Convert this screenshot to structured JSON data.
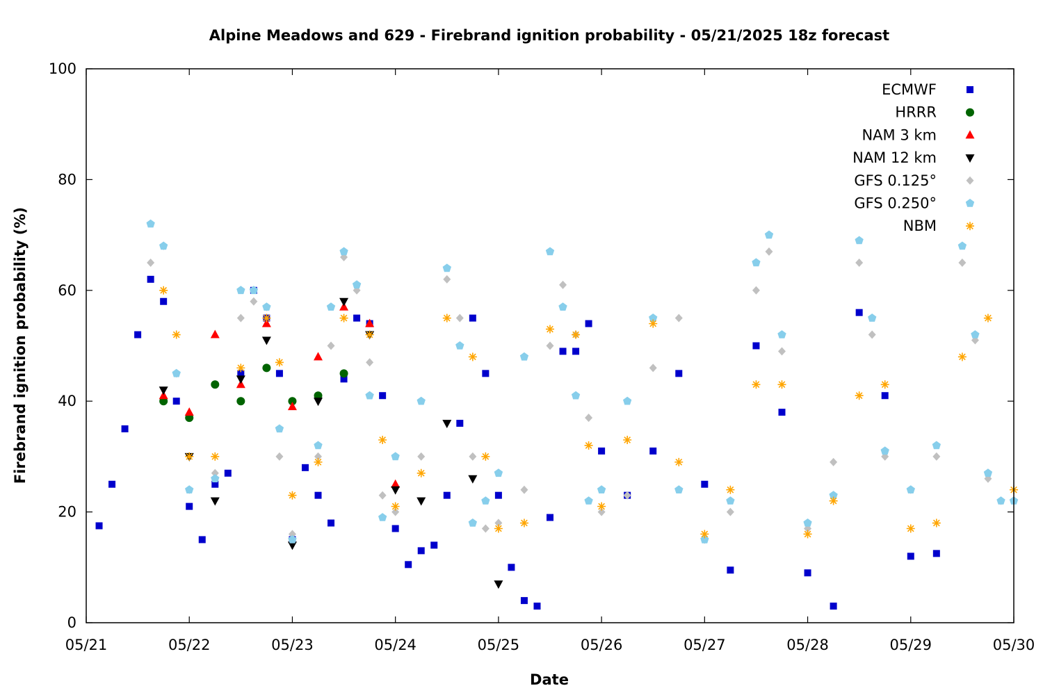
{
  "chart_data": {
    "type": "scatter",
    "title": "Alpine Meadows and 629 - Firebrand ignition probability - 05/21/2025 18z forecast",
    "xlabel": "Date",
    "ylabel": "Firebrand ignition probability (%)",
    "x_ticks": [
      "05/21",
      "05/22",
      "05/23",
      "05/24",
      "05/25",
      "05/26",
      "05/27",
      "05/28",
      "05/29",
      "05/30"
    ],
    "xlim": [
      "05/21 00:00",
      "05/30 00:00"
    ],
    "ylim": [
      0,
      100
    ],
    "y_ticks": [
      "0",
      "20",
      "40",
      "60",
      "80",
      "100"
    ],
    "grid": false,
    "legend_position": "top-right",
    "series": [
      {
        "name": "ECMWF",
        "marker": "square",
        "color": "#0000cc",
        "x": [
          "05/21 03:00",
          "05/21 06:00",
          "05/21 09:00",
          "05/21 12:00",
          "05/21 15:00",
          "05/21 18:00",
          "05/21 21:00",
          "05/22 00:00",
          "05/22 03:00",
          "05/22 06:00",
          "05/22 09:00",
          "05/22 12:00",
          "05/22 15:00",
          "05/22 18:00",
          "05/22 21:00",
          "05/23 00:00",
          "05/23 03:00",
          "05/23 06:00",
          "05/23 09:00",
          "05/23 12:00",
          "05/23 15:00",
          "05/23 18:00",
          "05/23 21:00",
          "05/24 00:00",
          "05/24 03:00",
          "05/24 06:00",
          "05/24 09:00",
          "05/24 12:00",
          "05/24 15:00",
          "05/24 18:00",
          "05/24 21:00",
          "05/25 00:00",
          "05/25 03:00",
          "05/25 06:00",
          "05/25 09:00",
          "05/25 12:00",
          "05/25 15:00",
          "05/25 18:00",
          "05/25 21:00",
          "05/26 00:00",
          "05/26 06:00",
          "05/26 12:00",
          "05/26 18:00",
          "05/27 00:00",
          "05/27 06:00",
          "05/27 12:00",
          "05/27 18:00",
          "05/28 00:00",
          "05/28 06:00",
          "05/28 12:00",
          "05/28 18:00",
          "05/29 00:00",
          "05/29 06:00"
        ],
        "y": [
          17.5,
          25,
          35,
          52,
          62,
          58,
          40,
          21,
          15,
          25,
          27,
          45,
          60,
          55,
          45,
          15,
          28,
          23,
          18,
          44,
          55,
          54,
          41,
          17,
          10.5,
          13,
          14,
          23,
          36,
          55,
          45,
          23,
          10,
          4,
          3,
          19,
          49,
          49,
          54,
          31,
          23,
          31,
          45,
          25,
          9.5,
          50,
          38,
          9,
          3,
          56,
          41,
          12,
          12.5
        ]
      },
      {
        "name": "HRRR",
        "marker": "circle",
        "color": "#006400",
        "x": [
          "05/21 18:00",
          "05/22 00:00",
          "05/22 06:00",
          "05/22 12:00",
          "05/22 18:00",
          "05/23 00:00",
          "05/23 06:00",
          "05/23 12:00"
        ],
        "y": [
          40,
          37,
          43,
          40,
          46,
          40,
          41,
          45
        ]
      },
      {
        "name": "NAM 3 km",
        "marker": "triangle-up",
        "color": "#ff0000",
        "x": [
          "05/21 18:00",
          "05/22 00:00",
          "05/22 06:00",
          "05/22 12:00",
          "05/22 18:00",
          "05/23 00:00",
          "05/23 06:00",
          "05/23 12:00",
          "05/23 18:00",
          "05/24 00:00"
        ],
        "y": [
          41,
          38,
          52,
          43,
          54,
          39,
          48,
          57,
          54,
          25
        ]
      },
      {
        "name": "NAM 12 km",
        "marker": "triangle-down",
        "color": "#000000",
        "x": [
          "05/21 18:00",
          "05/22 00:00",
          "05/22 06:00",
          "05/22 12:00",
          "05/22 18:00",
          "05/23 00:00",
          "05/23 06:00",
          "05/23 12:00",
          "05/23 18:00",
          "05/24 00:00",
          "05/24 06:00",
          "05/24 12:00",
          "05/24 18:00",
          "05/25 00:00"
        ],
        "y": [
          42,
          30,
          22,
          44,
          51,
          14,
          40,
          58,
          52,
          24,
          22,
          36,
          26,
          7
        ]
      },
      {
        "name": "GFS 0.125°",
        "marker": "diamond",
        "color": "#c0c0c0",
        "x": [
          "05/21 15:00",
          "05/21 18:00",
          "05/21 21:00",
          "05/22 00:00",
          "05/22 06:00",
          "05/22 12:00",
          "05/22 15:00",
          "05/22 18:00",
          "05/22 21:00",
          "05/23 00:00",
          "05/23 06:00",
          "05/23 09:00",
          "05/23 12:00",
          "05/23 15:00",
          "05/23 18:00",
          "05/23 21:00",
          "05/24 00:00",
          "05/24 06:00",
          "05/24 12:00",
          "05/24 15:00",
          "05/24 18:00",
          "05/24 21:00",
          "05/25 00:00",
          "05/25 06:00",
          "05/25 12:00",
          "05/25 15:00",
          "05/25 18:00",
          "05/25 21:00",
          "05/26 00:00",
          "05/26 06:00",
          "05/26 12:00",
          "05/26 18:00",
          "05/27 00:00",
          "05/27 06:00",
          "05/27 12:00",
          "05/27 15:00",
          "05/27 18:00",
          "05/28 00:00",
          "05/28 06:00",
          "05/28 12:00",
          "05/28 15:00",
          "05/28 18:00",
          "05/29 00:00",
          "05/29 06:00",
          "05/29 12:00",
          "05/29 15:00",
          "05/29 18:00",
          "05/29 21:00",
          "05/30 00:00"
        ],
        "y": [
          65,
          68,
          45,
          24,
          27,
          55,
          58,
          57,
          30,
          16,
          30,
          50,
          66,
          60,
          47,
          23,
          20,
          30,
          62,
          55,
          30,
          17,
          18,
          24,
          50,
          61,
          52,
          37,
          20,
          23,
          46,
          55,
          15,
          20,
          60,
          67,
          49,
          17,
          29,
          65,
          52,
          30,
          24,
          30,
          65,
          51,
          26,
          22,
          22
        ]
      },
      {
        "name": "GFS 0.250°",
        "marker": "pentagon",
        "color": "#87ceeb",
        "x": [
          "05/21 15:00",
          "05/21 18:00",
          "05/21 21:00",
          "05/22 00:00",
          "05/22 06:00",
          "05/22 12:00",
          "05/22 15:00",
          "05/22 18:00",
          "05/22 21:00",
          "05/23 00:00",
          "05/23 06:00",
          "05/23 09:00",
          "05/23 12:00",
          "05/23 15:00",
          "05/23 18:00",
          "05/23 21:00",
          "05/24 00:00",
          "05/24 06:00",
          "05/24 12:00",
          "05/24 15:00",
          "05/24 18:00",
          "05/24 21:00",
          "05/25 00:00",
          "05/25 06:00",
          "05/25 12:00",
          "05/25 15:00",
          "05/25 18:00",
          "05/25 21:00",
          "05/26 00:00",
          "05/26 06:00",
          "05/26 12:00",
          "05/26 18:00",
          "05/27 00:00",
          "05/27 06:00",
          "05/27 12:00",
          "05/27 15:00",
          "05/27 18:00",
          "05/28 00:00",
          "05/28 06:00",
          "05/28 12:00",
          "05/28 15:00",
          "05/28 18:00",
          "05/29 00:00",
          "05/29 06:00",
          "05/29 12:00",
          "05/29 15:00",
          "05/29 18:00",
          "05/29 21:00",
          "05/30 00:00"
        ],
        "y": [
          72,
          68,
          45,
          24,
          26,
          60,
          60,
          57,
          35,
          15,
          32,
          57,
          67,
          61,
          41,
          19,
          30,
          40,
          64,
          50,
          18,
          22,
          27,
          48,
          67,
          57,
          41,
          22,
          24,
          40,
          55,
          24,
          15,
          22,
          65,
          70,
          52,
          18,
          23,
          69,
          55,
          31,
          24,
          32,
          68,
          52,
          27,
          22,
          22
        ]
      },
      {
        "name": "NBM",
        "marker": "asterisk",
        "color": "#ffa500",
        "x": [
          "05/21 18:00",
          "05/21 21:00",
          "05/22 00:00",
          "05/22 06:00",
          "05/22 12:00",
          "05/22 18:00",
          "05/22 21:00",
          "05/23 00:00",
          "05/23 06:00",
          "05/23 12:00",
          "05/23 18:00",
          "05/23 21:00",
          "05/24 00:00",
          "05/24 06:00",
          "05/24 12:00",
          "05/24 18:00",
          "05/24 21:00",
          "05/25 00:00",
          "05/25 06:00",
          "05/25 12:00",
          "05/25 18:00",
          "05/25 21:00",
          "05/26 00:00",
          "05/26 06:00",
          "05/26 12:00",
          "05/26 18:00",
          "05/27 00:00",
          "05/27 06:00",
          "05/27 12:00",
          "05/27 18:00",
          "05/28 00:00",
          "05/28 06:00",
          "05/28 12:00",
          "05/28 18:00",
          "05/29 00:00",
          "05/29 06:00",
          "05/29 12:00",
          "05/29 18:00",
          "05/30 00:00"
        ],
        "y": [
          60,
          52,
          30,
          30,
          46,
          55,
          47,
          23,
          29,
          55,
          52,
          33,
          21,
          27,
          55,
          48,
          30,
          17,
          18,
          53,
          52,
          32,
          21,
          33,
          54,
          29,
          16,
          24,
          43,
          43,
          16,
          22,
          41,
          43,
          17,
          18,
          48,
          55,
          24
        ]
      }
    ]
  }
}
